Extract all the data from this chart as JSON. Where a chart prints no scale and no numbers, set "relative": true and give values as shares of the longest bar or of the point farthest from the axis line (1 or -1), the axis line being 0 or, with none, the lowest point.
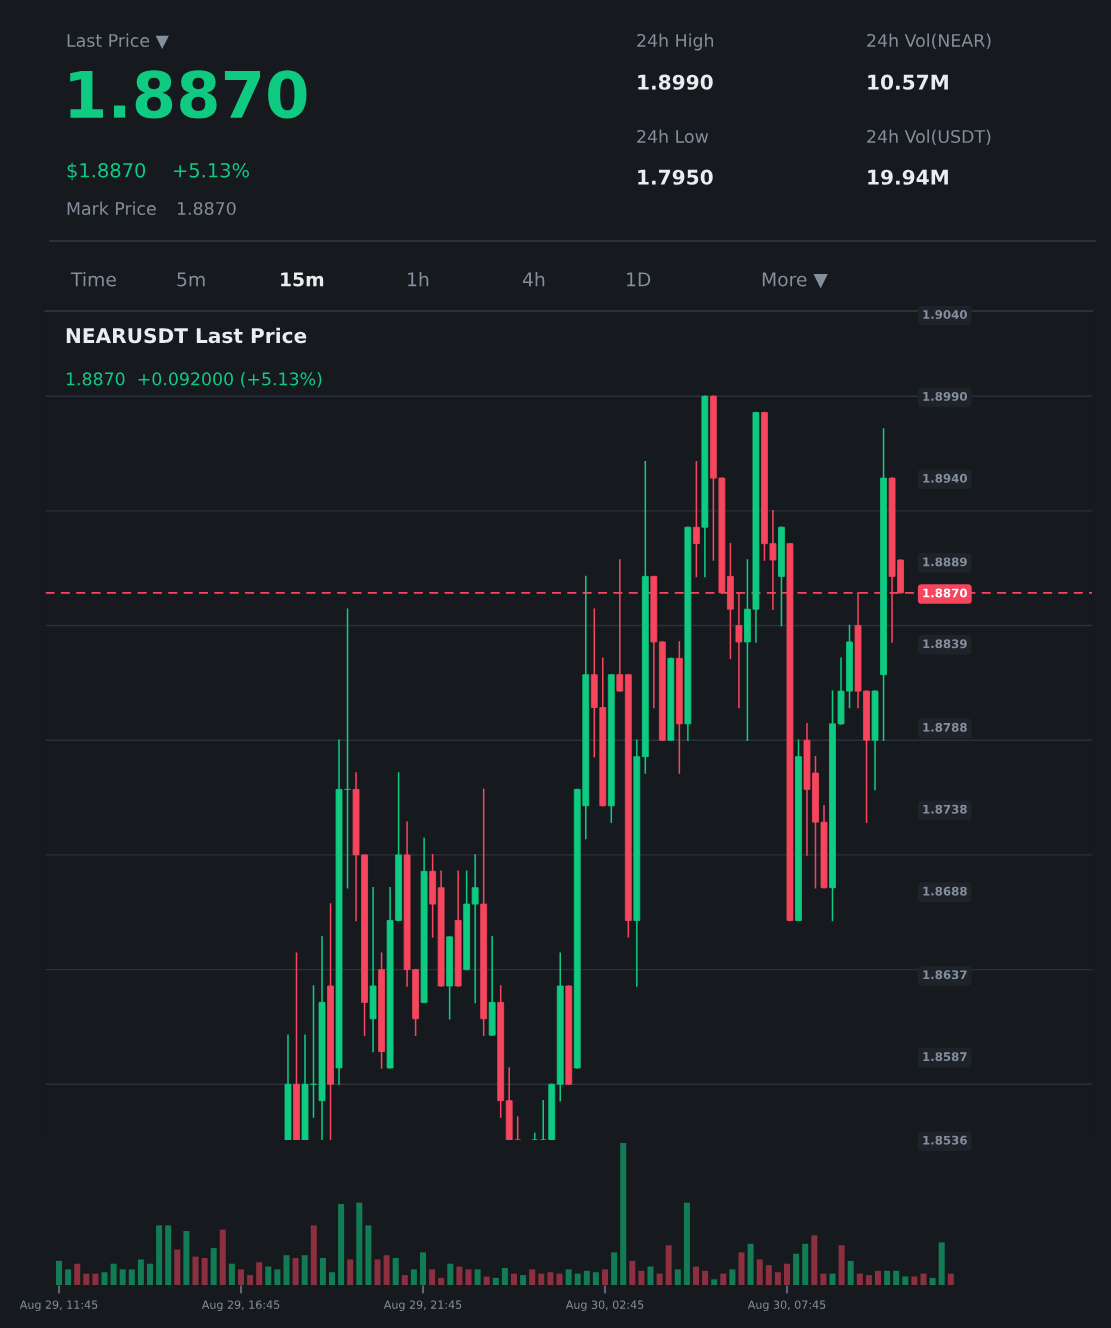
{
  "chart_data": [
    {
      "type": "other",
      "annotations": [
        "Last Price ▼",
        "1.8870",
        "$1.8870",
        "+5.13%",
        "Mark Price",
        "1.8870",
        "24h High",
        "1.8990",
        "24h Low",
        "1.7950",
        "24h Vol(NEAR)",
        "10.57M",
        "24h Vol(USDT)",
        "19.94M",
        "Time",
        "5m",
        "15m",
        "1h",
        "4h",
        "1D",
        "More ▼"
      ]
    },
    {
      "type": "candlestick",
      "title": "NEARUSDT Last Price",
      "subtitle": "1.8870  +0.092000 (+5.13%)",
      "categories": [
        null,
        null,
        null,
        null,
        null,
        null,
        null,
        null,
        null,
        null,
        null,
        null,
        null,
        null,
        null,
        null,
        null,
        null,
        null,
        null,
        null,
        null,
        null,
        null,
        null,
        null,
        null,
        null,
        null,
        null,
        null,
        null,
        null,
        null,
        null,
        null,
        null,
        null,
        null,
        null,
        null,
        null,
        null,
        null,
        null,
        null,
        null,
        null,
        null,
        null,
        null,
        null,
        null,
        null,
        null,
        null,
        null,
        null,
        null,
        null,
        null,
        null,
        null,
        null,
        null,
        null,
        null,
        null,
        null,
        null,
        null,
        null,
        null,
        null,
        null,
        null,
        null,
        null,
        null,
        null,
        null,
        null,
        null,
        null,
        null,
        null,
        null,
        null,
        null,
        null,
        null,
        null,
        null,
        null,
        null,
        null,
        null,
        null,
        null,
        null,
        null,
        null,
        null,
        null,
        null,
        null,
        null,
        null,
        null,
        null,
        null,
        null,
        null,
        null,
        null,
        null,
        null,
        null,
        null,
        null,
        null,
        null,
        null
      ],
      "ohlc": [
        null,
        null,
        null,
        null,
        null,
        null,
        null,
        null,
        null,
        null,
        null,
        null,
        null,
        null,
        null,
        null,
        null,
        null,
        null,
        null,
        null,
        null,
        null,
        null,
        null,
        null,
        null,
        null,
        [
          1.8536,
          1.86,
          1.8536,
          1.857
        ],
        [
          1.857,
          1.865,
          1.8536,
          1.8536
        ],
        [
          1.8536,
          1.86,
          1.8536,
          1.857
        ],
        [
          1.857,
          1.863,
          1.855,
          1.857
        ],
        [
          1.856,
          1.866,
          1.8536,
          1.862
        ],
        [
          1.863,
          1.868,
          1.8536,
          1.857
        ],
        [
          1.858,
          1.878,
          1.857,
          1.875
        ],
        [
          1.875,
          1.886,
          1.869,
          1.875
        ],
        [
          1.875,
          1.876,
          1.867,
          1.871
        ],
        [
          1.871,
          1.871,
          1.86,
          1.862
        ],
        [
          1.861,
          1.869,
          1.859,
          1.863
        ],
        [
          1.864,
          1.865,
          1.858,
          1.859
        ],
        [
          1.858,
          1.869,
          1.858,
          1.867
        ],
        [
          1.867,
          1.876,
          1.867,
          1.871
        ],
        [
          1.871,
          1.873,
          1.863,
          1.864
        ],
        [
          1.864,
          1.864,
          1.86,
          1.861
        ],
        [
          1.862,
          1.872,
          1.862,
          1.87
        ],
        [
          1.87,
          1.871,
          1.866,
          1.868
        ],
        [
          1.869,
          1.87,
          1.863,
          1.863
        ],
        [
          1.863,
          1.866,
          1.861,
          1.866
        ],
        [
          1.867,
          1.87,
          1.863,
          1.863
        ],
        [
          1.864,
          1.87,
          1.864,
          1.868
        ],
        [
          1.868,
          1.871,
          1.862,
          1.869
        ],
        [
          1.868,
          1.875,
          1.86,
          1.861
        ],
        [
          1.86,
          1.866,
          1.86,
          1.862
        ],
        [
          1.862,
          1.863,
          1.855,
          1.856
        ],
        [
          1.856,
          1.858,
          1.8536,
          1.8536
        ],
        [
          1.8536,
          1.855,
          1.8536,
          1.8536
        ],
        null,
        [
          1.8536,
          1.854,
          1.8536,
          1.8536
        ],
        [
          1.8536,
          1.856,
          1.8536,
          1.8536
        ],
        [
          1.8536,
          1.857,
          1.8536,
          1.857
        ],
        [
          1.857,
          1.865,
          1.856,
          1.863
        ],
        [
          1.863,
          1.863,
          1.857,
          1.857
        ],
        [
          1.858,
          1.875,
          1.858,
          1.875
        ],
        [
          1.874,
          1.888,
          1.872,
          1.882
        ],
        [
          1.882,
          1.886,
          1.877,
          1.88
        ],
        [
          1.88,
          1.883,
          1.874,
          1.874
        ],
        [
          1.874,
          1.882,
          1.873,
          1.882
        ],
        [
          1.882,
          1.889,
          1.881,
          1.881
        ],
        [
          1.882,
          1.882,
          1.866,
          1.867
        ],
        [
          1.867,
          1.878,
          1.863,
          1.877
        ],
        [
          1.877,
          1.895,
          1.876,
          1.888
        ],
        [
          1.888,
          1.888,
          1.88,
          1.884
        ],
        [
          1.884,
          1.884,
          1.878,
          1.878
        ],
        [
          1.878,
          1.883,
          1.878,
          1.883
        ],
        [
          1.883,
          1.884,
          1.876,
          1.879
        ],
        [
          1.879,
          1.891,
          1.878,
          1.891
        ],
        [
          1.891,
          1.895,
          1.888,
          1.89
        ],
        [
          1.891,
          1.899,
          1.888,
          1.899
        ],
        [
          1.899,
          1.899,
          1.889,
          1.894
        ],
        [
          1.894,
          1.894,
          1.887,
          1.887
        ],
        [
          1.888,
          1.89,
          1.883,
          1.886
        ],
        [
          1.885,
          1.887,
          1.88,
          1.884
        ],
        [
          1.884,
          1.889,
          1.878,
          1.886
        ],
        [
          1.886,
          1.898,
          1.884,
          1.898
        ],
        [
          1.898,
          1.898,
          1.889,
          1.89
        ],
        [
          1.89,
          1.892,
          1.886,
          1.889
        ],
        [
          1.888,
          1.891,
          1.885,
          1.891
        ],
        [
          1.89,
          1.89,
          1.867,
          1.867
        ],
        [
          1.867,
          1.878,
          1.867,
          1.877
        ],
        [
          1.878,
          1.879,
          1.871,
          1.875
        ],
        [
          1.876,
          1.877,
          1.869,
          1.873
        ],
        [
          1.873,
          1.874,
          1.869,
          1.869
        ],
        [
          1.869,
          1.881,
          1.867,
          1.879
        ],
        [
          1.879,
          1.883,
          1.879,
          1.881
        ],
        [
          1.881,
          1.885,
          1.88,
          1.884
        ],
        [
          1.885,
          1.887,
          1.88,
          1.881
        ],
        [
          1.881,
          1.881,
          1.873,
          1.878
        ],
        [
          1.878,
          1.881,
          1.875,
          1.881
        ],
        [
          1.882,
          1.897,
          1.878,
          1.894
        ],
        [
          1.894,
          1.894,
          1.884,
          1.888
        ],
        [
          1.889,
          1.889,
          1.887,
          1.887
        ],
        null,
        null,
        null,
        null,
        null,
        null,
        null,
        null,
        null,
        null,
        null,
        null,
        null,
        null,
        null,
        null,
        null,
        null,
        null,
        null,
        null,
        null
      ],
      "colors": [
        null,
        null,
        null,
        null,
        null,
        null,
        null,
        null,
        null,
        null,
        null,
        null,
        null,
        null,
        null,
        null,
        null,
        null,
        null,
        null,
        null,
        null,
        null,
        null,
        null,
        null,
        null,
        null,
        "#0ecb81",
        "#f6465d",
        "#0ecb81",
        "#0ecb81",
        "#0ecb81",
        "#f6465d",
        "#0ecb81",
        "#0ecb81",
        "#f6465d",
        "#f6465d",
        "#0ecb81",
        "#f6465d",
        "#0ecb81",
        "#0ecb81",
        "#f6465d",
        "#f6465d",
        "#0ecb81",
        "#f6465d",
        "#f6465d",
        "#0ecb81",
        "#f6465d",
        "#0ecb81",
        "#0ecb81",
        "#f6465d",
        "#0ecb81",
        "#f6465d",
        "#f6465d",
        "#f6465d",
        null,
        "#0ecb81",
        "#0ecb81",
        "#0ecb81",
        "#0ecb81",
        "#f6465d",
        "#0ecb81",
        "#0ecb81",
        "#f6465d",
        "#f6465d",
        "#0ecb81",
        "#f6465d",
        "#f6465d",
        "#0ecb81",
        "#0ecb81",
        "#f6465d",
        "#f6465d",
        "#0ecb81",
        "#f6465d",
        "#0ecb81",
        "#f6465d",
        "#0ecb81",
        "#f6465d",
        "#f6465d",
        "#f6465d",
        "#f6465d",
        "#0ecb81",
        "#0ecb81",
        "#f6465d",
        "#f6465d",
        "#0ecb81",
        "#f6465d",
        "#0ecb81",
        "#f6465d",
        "#f6465d",
        "#f6465d",
        "#0ecb81",
        "#0ecb81",
        "#0ecb81",
        "#f6465d",
        "#f6465d",
        "#0ecb81",
        "#0ecb81",
        "#f6465d",
        "#f6465d",
        null,
        null,
        null,
        null,
        null,
        null,
        null,
        null,
        null,
        null,
        null,
        null,
        null,
        null,
        null,
        null,
        null,
        null,
        null,
        null,
        null,
        null
      ],
      "ylim": [
        1.8536,
        1.9042
      ],
      "yticks": [
        {
          "value": 1.904,
          "label": "1.9040"
        },
        {
          "value": 1.899,
          "label": "1.8990"
        },
        {
          "value": 1.894,
          "label": "1.8940"
        },
        {
          "value": 1.8889,
          "label": "1.8889"
        },
        {
          "value": 1.8839,
          "label": "1.8839"
        },
        {
          "value": 1.8788,
          "label": "1.8788"
        },
        {
          "value": 1.8738,
          "label": "1.8738"
        },
        {
          "value": 1.8688,
          "label": "1.8688"
        },
        {
          "value": 1.8637,
          "label": "1.8637"
        },
        {
          "value": 1.8587,
          "label": "1.8587"
        },
        {
          "value": 1.8536,
          "label": "1.8536"
        },
        {
          "value": 1.899,
          "label": null
        },
        {
          "value": 1.892,
          "label": null
        },
        {
          "value": 1.885,
          "label": null
        },
        {
          "value": 1.878,
          "label": null
        },
        {
          "value": 1.871,
          "label": null
        },
        {
          "value": 1.864,
          "label": null
        },
        {
          "value": 1.857,
          "label": null
        }
      ],
      "grid": "y",
      "ref_lines": [
        {
          "axis": "y",
          "value": 1.887,
          "label": "1.8870",
          "color": "#f6465d",
          "line_style": "dashed"
        }
      ]
    },
    {
      "type": "bar",
      "relative": true,
      "categories": [
        "Aug 29, 11:45",
        null,
        null,
        null,
        null,
        null,
        null,
        null,
        null,
        null,
        null,
        null,
        null,
        null,
        null,
        null,
        null,
        null,
        null,
        null,
        "Aug 29, 16:45",
        null,
        null,
        null,
        null,
        null,
        null,
        null,
        null,
        null,
        null,
        null,
        null,
        null,
        null,
        null,
        null,
        null,
        null,
        null,
        "Aug 29, 21:45",
        null,
        null,
        null,
        null,
        null,
        null,
        null,
        null,
        null,
        null,
        null,
        null,
        null,
        null,
        null,
        null,
        null,
        null,
        null,
        "Aug 30, 02:45",
        null,
        null,
        null,
        null,
        null,
        null,
        null,
        null,
        null,
        null,
        null,
        null,
        null,
        null,
        null,
        null,
        null,
        null,
        null,
        "Aug 30, 07:45",
        null,
        null,
        null,
        null,
        null,
        null,
        null,
        null,
        null,
        null,
        null,
        null,
        null,
        null,
        null,
        null,
        null,
        null
      ],
      "values": [
        0.17,
        0.11,
        0.15,
        0.08,
        0.08,
        0.09,
        0.15,
        0.11,
        0.11,
        0.18,
        0.15,
        0.42,
        0.42,
        0.25,
        0.38,
        0.2,
        0.19,
        0.26,
        0.39,
        0.15,
        0.11,
        0.07,
        0.16,
        0.13,
        0.11,
        0.21,
        0.19,
        0.21,
        0.42,
        0.19,
        0.09,
        0.57,
        0.18,
        0.58,
        0.42,
        0.18,
        0.21,
        0.19,
        0.07,
        0.11,
        0.23,
        0.11,
        0.05,
        0.15,
        0.13,
        0.11,
        0.11,
        0.06,
        0.05,
        0.12,
        0.08,
        0.07,
        0.11,
        0.08,
        0.09,
        0.08,
        0.11,
        0.08,
        0.1,
        0.09,
        0.11,
        0.23,
        1,
        0.17,
        0.1,
        0.13,
        0.08,
        0.28,
        0.11,
        0.58,
        0.13,
        0.1,
        0.04,
        0.08,
        0.11,
        0.23,
        0.29,
        0.18,
        0.14,
        0.09,
        0.15,
        0.22,
        0.29,
        0.35,
        0.08,
        0.08,
        0.28,
        0.17,
        0.08,
        0.07,
        0.1,
        0.1,
        0.1,
        0.06,
        0.06,
        0.08,
        0.05,
        0.3,
        0.08
      ],
      "colors": [
        "#127c55",
        "#127c55",
        "#8c2f3e",
        "#8c2f3e",
        "#8c2f3e",
        "#127c55",
        "#127c55",
        "#127c55",
        "#127c55",
        "#127c55",
        "#127c55",
        "#127c55",
        "#127c55",
        "#8c2f3e",
        "#127c55",
        "#8c2f3e",
        "#8c2f3e",
        "#127c55",
        "#8c2f3e",
        "#127c55",
        "#8c2f3e",
        "#8c2f3e",
        "#8c2f3e",
        "#127c55",
        "#127c55",
        "#127c55",
        "#8c2f3e",
        "#127c55",
        "#8c2f3e",
        "#127c55",
        "#127c55",
        "#127c55",
        "#8c2f3e",
        "#127c55",
        "#127c55",
        "#8c2f3e",
        "#8c2f3e",
        "#127c55",
        "#8c2f3e",
        "#127c55",
        "#127c55",
        "#8c2f3e",
        "#8c2f3e",
        "#127c55",
        "#8c2f3e",
        "#8c2f3e",
        "#127c55",
        "#8c2f3e",
        "#127c55",
        "#127c55",
        "#8c2f3e",
        "#127c55",
        "#8c2f3e",
        "#8c2f3e",
        "#8c2f3e",
        "#8c2f3e",
        "#127c55",
        "#127c55",
        "#127c55",
        "#127c55",
        "#8c2f3e",
        "#127c55",
        "#127c55",
        "#8c2f3e",
        "#8c2f3e",
        "#127c55",
        "#8c2f3e",
        "#8c2f3e",
        "#127c55",
        "#127c55",
        "#8c2f3e",
        "#8c2f3e",
        "#127c55",
        "#8c2f3e",
        "#127c55",
        "#8c2f3e",
        "#127c55",
        "#8c2f3e",
        "#8c2f3e",
        "#8c2f3e",
        "#8c2f3e",
        "#127c55",
        "#127c55",
        "#8c2f3e",
        "#8c2f3e",
        "#127c55",
        "#8c2f3e",
        "#127c55",
        "#8c2f3e",
        "#8c2f3e",
        "#8c2f3e",
        "#127c55",
        "#127c55",
        "#127c55",
        "#8c2f3e",
        "#8c2f3e",
        "#127c55",
        "#127c55",
        "#8c2f3e"
      ]
    }
  ]
}
